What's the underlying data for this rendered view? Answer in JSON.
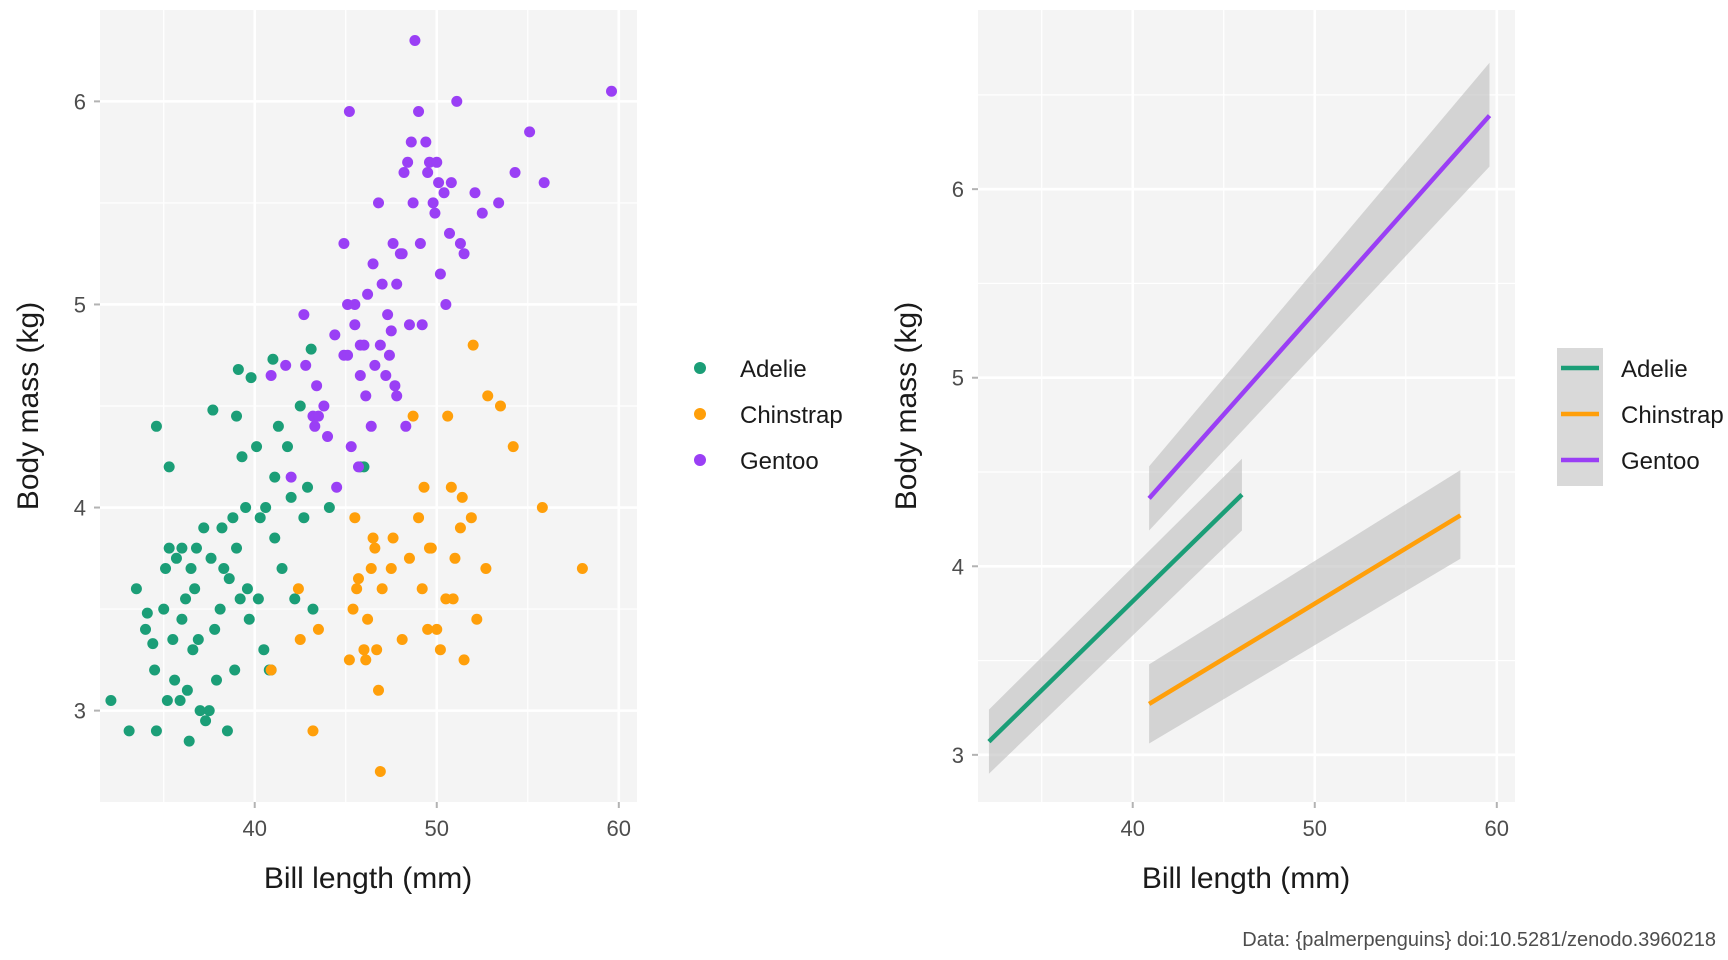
{
  "caption": "Data: {palmerpenguins} doi:10.5281/zenodo.3960218",
  "chart_data": [
    {
      "type": "scatter",
      "xlabel": "Bill length (mm)",
      "ylabel": "Body mass (kg)",
      "xlim": [
        31.5,
        61
      ],
      "ylim": [
        2.55,
        6.45
      ],
      "xticks": [
        40,
        50,
        60
      ],
      "yticks": [
        3,
        4,
        5,
        6
      ],
      "grid": true,
      "legend": {
        "position": "right",
        "entries": [
          "Adelie",
          "Chinstrap",
          "Gentoo"
        ]
      },
      "series": [
        {
          "name": "Adelie",
          "color": "#1b9e77",
          "points": [
            [
              32.1,
              3.05
            ],
            [
              33.1,
              2.9
            ],
            [
              33.5,
              3.6
            ],
            [
              34.0,
              3.4
            ],
            [
              34.1,
              3.48
            ],
            [
              34.4,
              3.33
            ],
            [
              34.5,
              3.2
            ],
            [
              34.6,
              4.4
            ],
            [
              34.6,
              2.9
            ],
            [
              35.0,
              3.5
            ],
            [
              35.1,
              3.7
            ],
            [
              35.2,
              3.05
            ],
            [
              35.3,
              4.2
            ],
            [
              35.3,
              3.8
            ],
            [
              35.5,
              3.35
            ],
            [
              35.6,
              3.15
            ],
            [
              35.7,
              3.75
            ],
            [
              35.9,
              3.05
            ],
            [
              36.0,
              3.45
            ],
            [
              36.0,
              3.8
            ],
            [
              36.2,
              3.55
            ],
            [
              36.3,
              3.1
            ],
            [
              36.4,
              2.85
            ],
            [
              36.5,
              3.7
            ],
            [
              36.6,
              3.3
            ],
            [
              36.7,
              3.6
            ],
            [
              36.8,
              3.8
            ],
            [
              37.0,
              3.0
            ],
            [
              37.2,
              3.9
            ],
            [
              37.3,
              2.95
            ],
            [
              37.5,
              3.0
            ],
            [
              37.6,
              3.75
            ],
            [
              37.7,
              4.48
            ],
            [
              37.8,
              3.4
            ],
            [
              37.9,
              3.15
            ],
            [
              38.1,
              3.5
            ],
            [
              38.2,
              3.9
            ],
            [
              38.3,
              3.7
            ],
            [
              38.5,
              2.9
            ],
            [
              38.6,
              3.65
            ],
            [
              38.8,
              3.95
            ],
            [
              39.0,
              3.8
            ],
            [
              39.1,
              4.68
            ],
            [
              39.2,
              3.55
            ],
            [
              39.3,
              4.25
            ],
            [
              39.5,
              4.0
            ],
            [
              39.6,
              3.6
            ],
            [
              39.7,
              3.45
            ],
            [
              39.8,
              4.64
            ],
            [
              40.1,
              4.3
            ],
            [
              40.3,
              3.95
            ],
            [
              40.5,
              3.3
            ],
            [
              40.6,
              4.0
            ],
            [
              40.8,
              3.2
            ],
            [
              41.0,
              4.73
            ],
            [
              41.1,
              3.85
            ],
            [
              41.3,
              4.4
            ],
            [
              41.5,
              3.7
            ],
            [
              41.8,
              4.3
            ],
            [
              42.0,
              4.05
            ],
            [
              42.2,
              3.55
            ],
            [
              42.5,
              4.5
            ],
            [
              42.7,
              3.95
            ],
            [
              42.9,
              4.1
            ],
            [
              43.1,
              4.78
            ],
            [
              43.2,
              3.5
            ],
            [
              44.1,
              4.0
            ],
            [
              45.8,
              4.2
            ],
            [
              46.0,
              4.2
            ],
            [
              36.9,
              3.35
            ],
            [
              38.9,
              3.2
            ],
            [
              40.2,
              3.55
            ],
            [
              40.9,
              3.2
            ],
            [
              39.0,
              4.45
            ],
            [
              41.1,
              4.15
            ]
          ]
        },
        {
          "name": "Chinstrap",
          "color": "#ff9f0a",
          "points": [
            [
              40.9,
              3.2
            ],
            [
              42.4,
              3.6
            ],
            [
              42.5,
              3.35
            ],
            [
              43.2,
              2.9
            ],
            [
              43.5,
              3.4
            ],
            [
              45.2,
              3.25
            ],
            [
              45.4,
              3.5
            ],
            [
              45.5,
              3.95
            ],
            [
              45.6,
              3.6
            ],
            [
              45.7,
              3.65
            ],
            [
              46.0,
              3.3
            ],
            [
              46.1,
              3.25
            ],
            [
              46.2,
              3.45
            ],
            [
              46.4,
              3.7
            ],
            [
              46.5,
              3.85
            ],
            [
              46.6,
              3.8
            ],
            [
              46.7,
              3.3
            ],
            [
              46.9,
              2.7
            ],
            [
              47.0,
              3.6
            ],
            [
              47.5,
              3.7
            ],
            [
              47.6,
              3.85
            ],
            [
              48.1,
              3.35
            ],
            [
              48.5,
              3.75
            ],
            [
              48.7,
              4.45
            ],
            [
              49.0,
              3.95
            ],
            [
              49.2,
              3.6
            ],
            [
              49.5,
              3.4
            ],
            [
              49.7,
              3.8
            ],
            [
              50.0,
              3.4
            ],
            [
              50.2,
              3.3
            ],
            [
              50.5,
              3.55
            ],
            [
              50.8,
              4.1
            ],
            [
              51.0,
              3.75
            ],
            [
              51.3,
              3.9
            ],
            [
              51.5,
              3.25
            ],
            [
              51.9,
              3.95
            ],
            [
              52.0,
              4.8
            ],
            [
              52.2,
              3.45
            ],
            [
              52.7,
              3.7
            ],
            [
              53.5,
              4.5
            ],
            [
              54.2,
              4.3
            ],
            [
              55.8,
              4.0
            ],
            [
              58.0,
              3.7
            ],
            [
              49.6,
              3.8
            ],
            [
              50.9,
              3.55
            ],
            [
              51.4,
              4.05
            ],
            [
              50.6,
              4.45
            ],
            [
              49.3,
              4.1
            ],
            [
              52.8,
              4.55
            ],
            [
              46.8,
              3.1
            ]
          ]
        },
        {
          "name": "Gentoo",
          "color": "#9a3ff5",
          "points": [
            [
              40.9,
              4.65
            ],
            [
              41.7,
              4.7
            ],
            [
              42.0,
              4.15
            ],
            [
              42.7,
              4.95
            ],
            [
              42.8,
              4.7
            ],
            [
              43.2,
              4.45
            ],
            [
              43.3,
              4.4
            ],
            [
              43.4,
              4.6
            ],
            [
              43.5,
              4.45
            ],
            [
              44.0,
              4.35
            ],
            [
              44.4,
              4.85
            ],
            [
              44.5,
              4.1
            ],
            [
              44.9,
              4.75
            ],
            [
              45.1,
              5.0
            ],
            [
              45.2,
              5.95
            ],
            [
              45.3,
              4.3
            ],
            [
              45.5,
              4.9
            ],
            [
              45.7,
              4.2
            ],
            [
              45.8,
              4.65
            ],
            [
              46.0,
              4.8
            ],
            [
              46.2,
              5.05
            ],
            [
              46.4,
              4.4
            ],
            [
              46.5,
              5.2
            ],
            [
              46.6,
              4.7
            ],
            [
              46.8,
              5.5
            ],
            [
              47.0,
              5.1
            ],
            [
              47.2,
              4.65
            ],
            [
              47.3,
              4.95
            ],
            [
              47.5,
              4.87
            ],
            [
              47.6,
              5.3
            ],
            [
              47.7,
              4.6
            ],
            [
              47.8,
              4.55
            ],
            [
              48.1,
              5.25
            ],
            [
              48.2,
              5.65
            ],
            [
              48.4,
              5.7
            ],
            [
              48.5,
              4.9
            ],
            [
              48.6,
              5.8
            ],
            [
              48.7,
              5.5
            ],
            [
              48.8,
              6.3
            ],
            [
              49.0,
              5.95
            ],
            [
              49.1,
              5.3
            ],
            [
              49.2,
              4.9
            ],
            [
              49.4,
              5.8
            ],
            [
              49.5,
              5.65
            ],
            [
              49.6,
              5.7
            ],
            [
              49.8,
              5.5
            ],
            [
              50.0,
              5.7
            ],
            [
              50.2,
              5.15
            ],
            [
              50.4,
              5.55
            ],
            [
              50.5,
              5.0
            ],
            [
              50.8,
              5.6
            ],
            [
              51.1,
              6.0
            ],
            [
              51.3,
              5.3
            ],
            [
              51.5,
              5.25
            ],
            [
              52.1,
              5.55
            ],
            [
              52.5,
              5.45
            ],
            [
              53.4,
              5.5
            ],
            [
              54.3,
              5.65
            ],
            [
              55.1,
              5.85
            ],
            [
              55.9,
              5.6
            ],
            [
              59.6,
              6.05
            ],
            [
              45.1,
              4.75
            ],
            [
              46.1,
              4.55
            ],
            [
              47.4,
              4.75
            ],
            [
              48.3,
              4.4
            ],
            [
              49.9,
              5.45
            ],
            [
              50.7,
              5.35
            ],
            [
              44.9,
              5.3
            ],
            [
              43.8,
              4.5
            ],
            [
              45.5,
              5.0
            ],
            [
              47.8,
              5.1
            ],
            [
              46.9,
              4.8
            ],
            [
              50.1,
              5.6
            ],
            [
              48.0,
              5.25
            ],
            [
              45.8,
              4.8
            ]
          ]
        }
      ]
    },
    {
      "type": "line",
      "xlabel": "Bill length (mm)",
      "ylabel": "Body mass (kg)",
      "xlim": [
        31.5,
        61
      ],
      "ylim": [
        2.75,
        6.95
      ],
      "xticks": [
        40,
        50,
        60
      ],
      "yticks": [
        3,
        4,
        5,
        6
      ],
      "grid": true,
      "legend": {
        "position": "right",
        "entries": [
          "Adelie",
          "Chinstrap",
          "Gentoo"
        ]
      },
      "series": [
        {
          "name": "Adelie",
          "color": "#1b9e77",
          "x": [
            32.1,
            46.0
          ],
          "y": [
            3.07,
            4.38
          ],
          "ci_lower": [
            2.9,
            4.19
          ],
          "ci_upper": [
            3.24,
            4.57
          ]
        },
        {
          "name": "Chinstrap",
          "color": "#ff9f0a",
          "x": [
            40.9,
            58.0
          ],
          "y": [
            3.27,
            4.27
          ],
          "ci_lower": [
            3.06,
            4.04
          ],
          "ci_upper": [
            3.48,
            4.51
          ]
        },
        {
          "name": "Gentoo",
          "color": "#9a3ff5",
          "x": [
            40.9,
            59.6
          ],
          "y": [
            4.36,
            6.39
          ],
          "ci_lower": [
            4.19,
            6.12
          ],
          "ci_upper": [
            4.53,
            6.67
          ]
        }
      ]
    }
  ]
}
